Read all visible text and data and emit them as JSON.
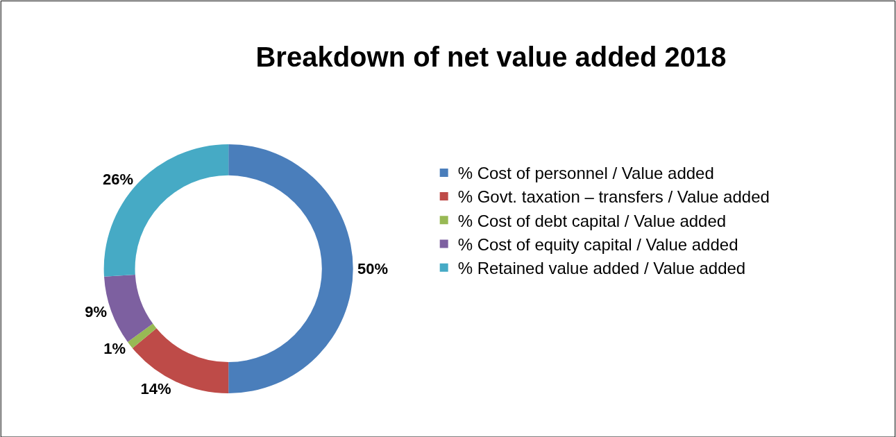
{
  "chart_data": {
    "type": "donut",
    "title": "Breakdown of net value added 2018",
    "categories": [
      "% Cost of personnel / Value added",
      "% Govt. taxation – transfers / Value added",
      "% Cost of debt capital / Value added",
      "% Cost of equity capital / Value added",
      "% Retained value added / Value added"
    ],
    "values": [
      50,
      14,
      1,
      9,
      26
    ],
    "colors": [
      "#4a7ebb",
      "#be4b48",
      "#98b954",
      "#7d60a0",
      "#46aac5"
    ],
    "value_labels": [
      "50%",
      "14%",
      "1%",
      "9%",
      "26%"
    ],
    "legend": "right"
  }
}
